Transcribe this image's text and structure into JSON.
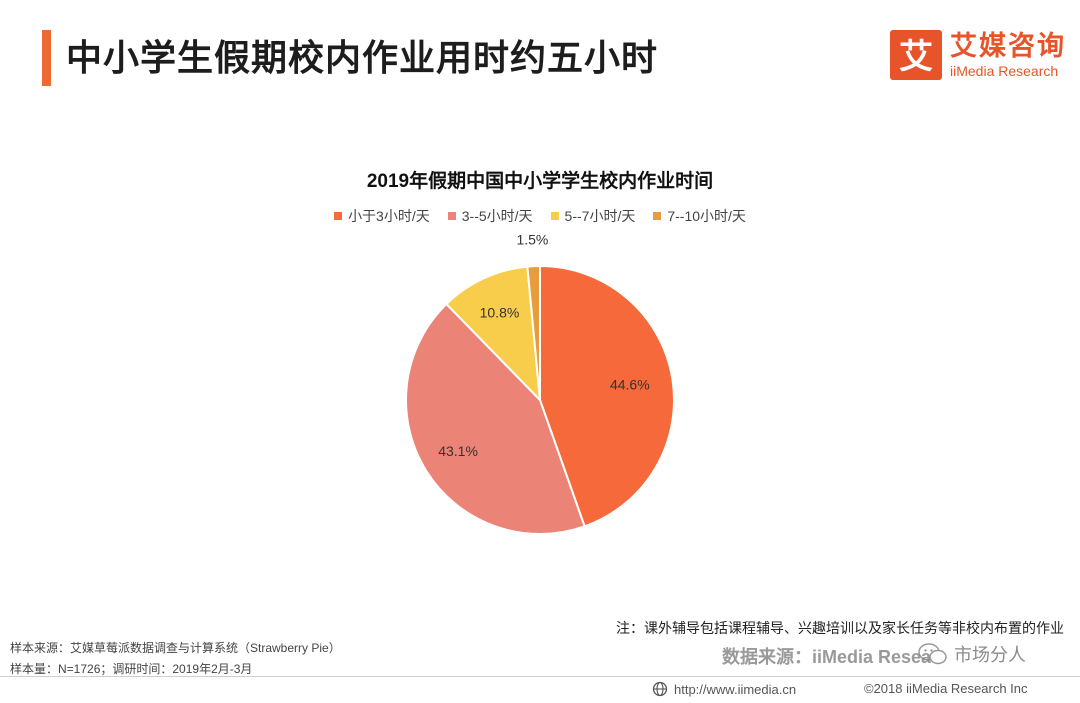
{
  "header": {
    "title": "中小学生假期校内作业用时约五小时"
  },
  "logo": {
    "mark_glyph": "艾",
    "name_cn": "艾媒咨询",
    "name_en": "iiMedia Research"
  },
  "colors": {
    "accent": "#ef6a32",
    "brand": "#e8542a"
  },
  "chart_data": {
    "type": "pie",
    "title": "2019年假期中国中小学学生校内作业时间",
    "categories": [
      "小于3小时/天",
      "3--5小时/天",
      "5--7小时/天",
      "7--10小时/天"
    ],
    "values": [
      44.6,
      43.1,
      10.8,
      1.5
    ],
    "labels": [
      "44.6%",
      "43.1%",
      "10.8%",
      "1.5%"
    ],
    "colors": [
      "#f5693a",
      "#ec8377",
      "#f8cd4c",
      "#e89c3c"
    ],
    "legend_position": "top-center",
    "start": "12 o'clock",
    "direction": "clockwise"
  },
  "footer": {
    "sample_source": "样本来源：艾媒草莓派数据调查与计算系统（Strawberry Pie）",
    "sample_size": "样本量：N=1726；调研时间：2019年2月-3月",
    "note": "注：课外辅导包括课程辅导、兴趣培训以及家长任务等非校内布置的作业",
    "data_source": "数据来源：iiMedia Resea",
    "watermark": "市场分人",
    "url": "http://www.iimedia.cn",
    "copyright": "©2018 iiMedia Research Inc"
  }
}
